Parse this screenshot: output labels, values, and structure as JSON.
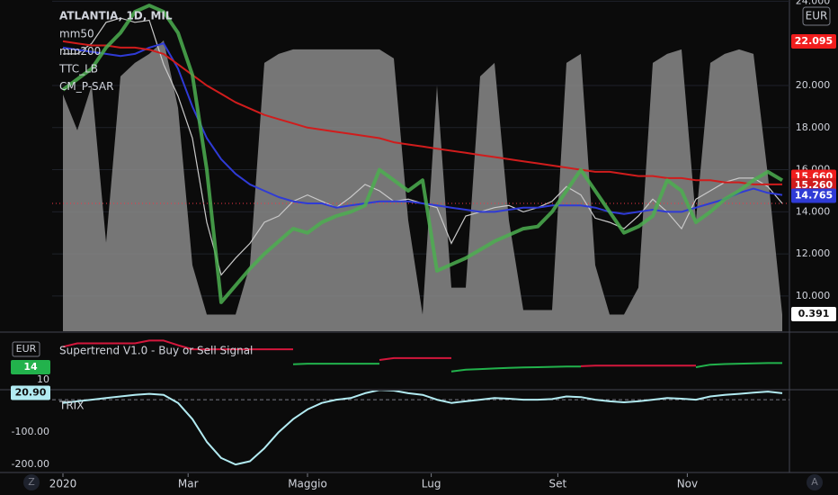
{
  "ui": {
    "zoom": "Z",
    "auto": "A"
  },
  "chart_data": [
    {
      "type": "line",
      "title": "ATLANTIA, 1D, MIL",
      "currency": "EUR",
      "color": "#c9c9c9",
      "grid": true,
      "x": [
        0,
        1,
        2,
        3,
        4,
        5,
        6,
        7,
        8,
        9,
        10,
        11,
        12,
        13,
        14,
        15,
        16,
        17,
        18,
        19,
        20,
        21,
        22,
        23,
        24,
        25,
        26,
        27,
        28,
        29,
        30,
        31,
        32,
        33,
        34,
        35,
        36,
        37,
        38,
        39,
        40,
        41,
        42,
        43,
        44,
        45,
        46,
        47,
        48,
        49,
        50
      ],
      "values": [
        21.5,
        21.5,
        22.0,
        23.0,
        23.2,
        23.0,
        23.1,
        21.0,
        19.5,
        17.5,
        13.5,
        11.0,
        11.8,
        12.5,
        13.5,
        13.8,
        14.5,
        14.8,
        14.5,
        14.2,
        14.7,
        15.3,
        15.0,
        14.5,
        14.6,
        14.4,
        14.2,
        12.5,
        13.8,
        14.0,
        14.2,
        14.3,
        14.0,
        14.2,
        14.5,
        15.2,
        14.8,
        13.7,
        13.5,
        13.2,
        13.8,
        14.6,
        14.0,
        13.2,
        14.6,
        15.0,
        15.4,
        15.6,
        15.6,
        15.2,
        14.4
      ],
      "xlim": [
        -0.75,
        50.5
      ],
      "xticks": [
        {
          "value": 0,
          "label": "2020"
        },
        {
          "value": 8.7,
          "label": "Mar"
        },
        {
          "value": 17.0,
          "label": "Maggio"
        },
        {
          "value": 25.6,
          "label": "Lug"
        },
        {
          "value": 34.4,
          "label": "Set"
        },
        {
          "value": 43.4,
          "label": "Nov"
        }
      ],
      "ylim": [
        8.33,
        24.06
      ],
      "yticks": [
        {
          "value": 10,
          "label": "10.000"
        },
        {
          "value": 12,
          "label": "12.000"
        },
        {
          "value": 14,
          "label": "14.000"
        },
        {
          "value": 16,
          "label": "16.000"
        },
        {
          "value": 18,
          "label": "18.000"
        },
        {
          "value": 20,
          "label": "20.000"
        },
        {
          "value": 24,
          "label": "24.000"
        }
      ],
      "y2lim": [
        0.353,
        1.09
      ],
      "series": [
        {
          "name": "mm50",
          "color": "#2f3bd6",
          "values": [
            21.8,
            21.7,
            21.6,
            21.5,
            21.4,
            21.5,
            21.8,
            22.0,
            20.8,
            19.0,
            17.5,
            16.5,
            15.8,
            15.3,
            15.0,
            14.7,
            14.5,
            14.4,
            14.4,
            14.2,
            14.3,
            14.4,
            14.5,
            14.5,
            14.5,
            14.4,
            14.3,
            14.2,
            14.1,
            14.0,
            14.0,
            14.1,
            14.2,
            14.2,
            14.3,
            14.3,
            14.3,
            14.2,
            14.0,
            13.9,
            14.0,
            14.1,
            14.0,
            14.0,
            14.2,
            14.4,
            14.6,
            14.9,
            15.1,
            14.9,
            14.8
          ]
        },
        {
          "name": "mm200",
          "color": "#d01c1c",
          "values": [
            22.1,
            22.0,
            21.9,
            21.9,
            21.8,
            21.8,
            21.7,
            21.5,
            21.0,
            20.5,
            20.0,
            19.6,
            19.2,
            18.9,
            18.6,
            18.4,
            18.2,
            18.0,
            17.9,
            17.8,
            17.7,
            17.6,
            17.5,
            17.3,
            17.2,
            17.1,
            17.0,
            16.9,
            16.8,
            16.7,
            16.6,
            16.5,
            16.4,
            16.3,
            16.2,
            16.1,
            16.0,
            15.9,
            15.9,
            15.8,
            15.7,
            15.7,
            15.6,
            15.6,
            15.5,
            15.5,
            15.4,
            15.4,
            15.3,
            15.3,
            15.3
          ]
        },
        {
          "name": "TTC_LB",
          "color": "#8a8a8a",
          "axis": "y2",
          "fill": true,
          "values": [
            0.88,
            0.8,
            0.9,
            0.55,
            0.92,
            0.95,
            0.97,
            1.0,
            0.85,
            0.5,
            0.39,
            0.39,
            0.39,
            0.5,
            0.95,
            0.97,
            0.98,
            0.98,
            0.98,
            0.98,
            0.98,
            0.98,
            0.98,
            0.96,
            0.6,
            0.39,
            0.9,
            0.45,
            0.45,
            0.92,
            0.95,
            0.6,
            0.4,
            0.4,
            0.4,
            0.95,
            0.97,
            0.5,
            0.39,
            0.39,
            0.45,
            0.95,
            0.97,
            0.98,
            0.6,
            0.95,
            0.97,
            0.98,
            0.97,
            0.7,
            0.39
          ]
        },
        {
          "name": "CM_P-SAR",
          "color": "#4caf50",
          "width": 4,
          "values": [
            19.8,
            20.3,
            20.8,
            21.8,
            22.5,
            23.5,
            23.8,
            23.5,
            22.5,
            20.5,
            16.0,
            9.7,
            10.5,
            11.3,
            12.0,
            12.6,
            13.2,
            13.0,
            13.5,
            13.8,
            14.0,
            14.3,
            16.0,
            15.5,
            15.0,
            15.5,
            11.2,
            11.5,
            11.8,
            12.2,
            12.6,
            12.9,
            13.2,
            13.3,
            14.0,
            15.0,
            16.0,
            15.0,
            14.0,
            13.0,
            13.3,
            13.8,
            15.5,
            15.0,
            13.5,
            14.0,
            14.6,
            15.0,
            15.5,
            15.9,
            15.5
          ]
        }
      ],
      "price_labels": [
        {
          "value": 22.095,
          "label": "22.095",
          "color": "#f01d1d"
        },
        {
          "value": 15.66,
          "label": "15.660",
          "color": "#f01d1d"
        },
        {
          "value": 15.26,
          "label": "15.260",
          "color": "#d01c1c"
        },
        {
          "value": 14.765,
          "label": "14.765",
          "color": "#2f3bd6"
        },
        {
          "value": 0.391,
          "label": "0.391",
          "color": "#ffffff",
          "axis": "y2"
        }
      ]
    },
    {
      "type": "line",
      "title": "Supertrend V1.0 - Buy or Sell Signal",
      "currency": "EUR",
      "x": [
        0,
        1,
        2,
        3,
        4,
        5,
        6,
        7,
        8,
        9,
        10,
        11,
        12,
        13,
        14,
        15,
        16,
        17,
        18,
        19,
        20,
        21,
        22,
        23,
        24,
        25,
        26,
        27,
        28,
        29,
        30,
        31,
        32,
        33,
        34,
        35,
        36,
        37,
        38,
        39,
        40,
        41,
        42,
        43,
        44,
        45,
        46,
        47,
        48,
        49,
        50
      ],
      "xlim": [
        -0.75,
        50.5
      ],
      "ylim": [
        7.1,
        24.9
      ],
      "yticks": [
        10
      ],
      "series": [
        {
          "color": "#d3173c",
          "values": [
            20.5,
            21.6,
            21.6,
            21.6,
            21.6,
            21.6,
            22.5,
            22.5,
            21.0,
            19.7,
            19.7,
            19.7,
            19.7,
            19.7,
            19.7,
            19.7,
            19.7,
            null,
            null,
            null,
            null,
            null,
            16.3,
            16.9,
            16.9,
            16.9,
            16.9,
            16.9,
            null,
            null,
            null,
            null,
            null,
            null,
            null,
            null,
            14.3,
            14.5,
            14.5,
            14.5,
            14.5,
            14.5,
            14.5,
            14.5,
            14.5,
            null,
            null,
            null,
            null,
            null,
            null
          ]
        },
        {
          "color": "#22b24c",
          "values": [
            null,
            null,
            null,
            null,
            null,
            null,
            null,
            null,
            null,
            null,
            null,
            null,
            null,
            null,
            null,
            null,
            14.9,
            15.1,
            15.1,
            15.1,
            15.1,
            15.1,
            15.1,
            null,
            null,
            null,
            null,
            12.6,
            13.2,
            13.4,
            13.6,
            13.8,
            13.9,
            14.0,
            14.1,
            14.2,
            14.2,
            null,
            null,
            null,
            null,
            null,
            null,
            null,
            14.0,
            14.8,
            15.0,
            15.1,
            15.2,
            15.3,
            15.3
          ]
        }
      ],
      "price_labels": [
        {
          "value": 14,
          "label": "14",
          "color": "#22b24c"
        }
      ]
    },
    {
      "type": "line",
      "title": "TRIX",
      "x": [
        0,
        1,
        2,
        3,
        4,
        5,
        6,
        7,
        8,
        9,
        10,
        11,
        12,
        13,
        14,
        15,
        16,
        17,
        18,
        19,
        20,
        21,
        22,
        23,
        24,
        25,
        26,
        27,
        28,
        29,
        30,
        31,
        32,
        33,
        34,
        35,
        36,
        37,
        38,
        39,
        40,
        41,
        42,
        43,
        44,
        45,
        46,
        47,
        48,
        49,
        50
      ],
      "xlim": [
        -0.75,
        50.5
      ],
      "ylim": [
        -222,
        28
      ],
      "yticks": [
        {
          "value": -100,
          "label": "-100.00"
        },
        {
          "value": -200,
          "label": "-200.00"
        }
      ],
      "hline": 0,
      "series": [
        {
          "color": "#b2ebf2",
          "values": [
            -10,
            -5,
            0,
            5,
            10,
            15,
            18,
            15,
            -10,
            -60,
            -130,
            -180,
            -200,
            -190,
            -150,
            -100,
            -60,
            -30,
            -10,
            0,
            5,
            20,
            30,
            28,
            20,
            15,
            0,
            -10,
            -5,
            0,
            5,
            3,
            0,
            0,
            2,
            10,
            8,
            0,
            -5,
            -8,
            -5,
            0,
            5,
            3,
            0,
            10,
            15,
            18,
            22,
            25,
            20
          ]
        }
      ],
      "price_labels": [
        {
          "value": 20.9,
          "label": "20.90",
          "color": "#b2ebf2"
        }
      ]
    }
  ]
}
